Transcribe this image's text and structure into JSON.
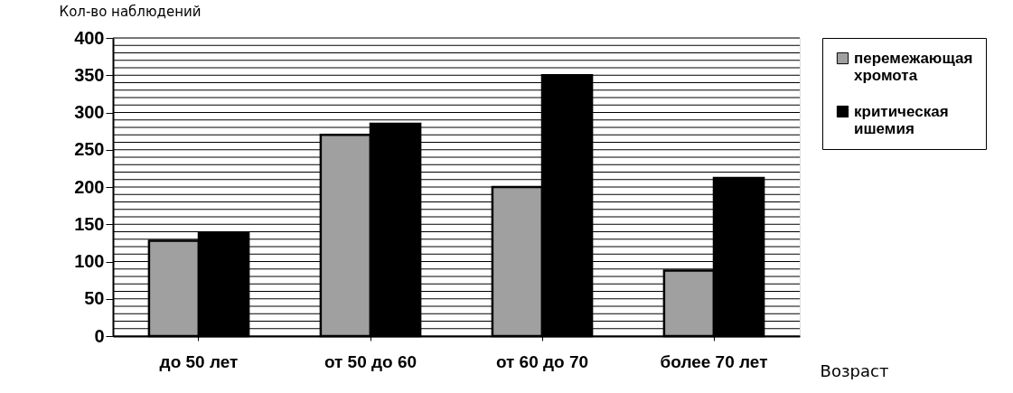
{
  "chart_data": {
    "type": "bar",
    "xlabel": "Возраст",
    "ylabel": "Кол-во наблюдений",
    "categories": [
      "до 50 лет",
      "от 50 до 60",
      "от 60 до 70",
      "более 70 лет"
    ],
    "series": [
      {
        "name": "перемежающая хромота",
        "color": "#a0a0a0",
        "values": [
          128,
          270,
          200,
          88
        ]
      },
      {
        "name": "критическая ишемия",
        "color": "#000000",
        "values": [
          138,
          285,
          350,
          212
        ]
      }
    ],
    "ylim": [
      0,
      400
    ],
    "yticks": [
      0,
      {
        "value": 10,
        "label": null
      },
      {
        "value": 20,
        "label": null
      },
      {
        "value": 30,
        "label": null
      },
      {
        "value": 40,
        "label": null
      },
      50,
      {
        "value": 60,
        "label": null
      },
      {
        "value": 70,
        "label": null
      },
      {
        "value": 80,
        "label": null
      },
      {
        "value": 90,
        "label": null
      },
      100,
      {
        "value": 110,
        "label": null
      },
      {
        "value": 120,
        "label": null
      },
      {
        "value": 130,
        "label": null
      },
      {
        "value": 140,
        "label": null
      },
      150,
      {
        "value": 160,
        "label": null
      },
      {
        "value": 170,
        "label": null
      },
      {
        "value": 180,
        "label": null
      },
      {
        "value": 190,
        "label": null
      },
      200,
      {
        "value": 210,
        "label": null
      },
      {
        "value": 220,
        "label": null
      },
      {
        "value": 230,
        "label": null
      },
      {
        "value": 240,
        "label": null
      },
      250,
      {
        "value": 260,
        "label": null
      },
      {
        "value": 270,
        "label": null
      },
      {
        "value": 280,
        "label": null
      },
      {
        "value": 290,
        "label": null
      },
      300,
      {
        "value": 310,
        "label": null
      },
      {
        "value": 320,
        "label": null
      },
      {
        "value": 330,
        "label": null
      },
      {
        "value": 340,
        "label": null
      },
      350,
      {
        "value": 360,
        "label": null
      },
      {
        "value": 370,
        "label": null
      },
      {
        "value": 380,
        "label": null
      },
      {
        "value": 390,
        "label": null
      },
      400
    ],
    "grid": "y",
    "legend": "right"
  }
}
